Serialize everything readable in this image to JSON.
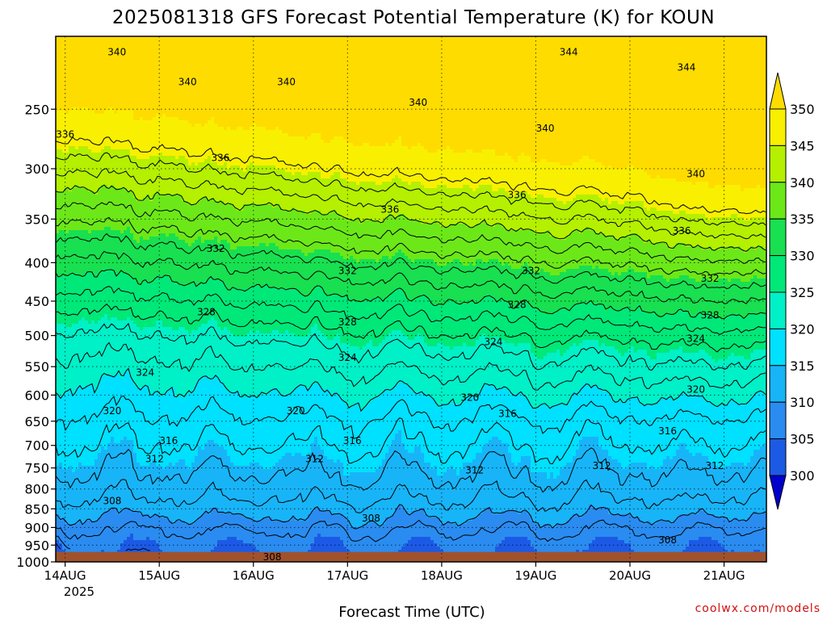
{
  "chart_data": {
    "type": "heatmap",
    "title": "2025081318 GFS Forecast Potential Temperature (K) for KOUN",
    "xlabel": "Forecast Time (UTC)",
    "ylabel": "",
    "x_tick_labels": [
      "14AUG",
      "15AUG",
      "16AUG",
      "17AUG",
      "18AUG",
      "19AUG",
      "20AUG",
      "21AUG"
    ],
    "x_year_label": "2025",
    "y_tick_labels": [
      "250",
      "300",
      "350",
      "400",
      "450",
      "500",
      "550",
      "600",
      "650",
      "700",
      "750",
      "800",
      "850",
      "900",
      "950",
      "1000"
    ],
    "y_tick_values": [
      250,
      300,
      350,
      400,
      450,
      500,
      550,
      600,
      650,
      700,
      750,
      800,
      850,
      900,
      950,
      1000
    ],
    "ylim": [
      1000,
      200
    ],
    "y_scale": "log",
    "x_range_days": [
      13.9,
      21.45
    ],
    "grid": true,
    "colorbar": {
      "levels": [
        300,
        305,
        310,
        315,
        320,
        325,
        330,
        335,
        340,
        345,
        350
      ],
      "labels": [
        "300",
        "305",
        "310",
        "315",
        "320",
        "325",
        "330",
        "335",
        "340",
        "345",
        "350"
      ],
      "colors": [
        "#0000cd",
        "#1c5ae6",
        "#2a8cf0",
        "#18b4f8",
        "#00e0ff",
        "#00f0c8",
        "#00e878",
        "#18e050",
        "#6ce818",
        "#b4f000",
        "#f8f000",
        "#ffdc00"
      ]
    },
    "contour_interval_K": 2,
    "contour_values": [
      300,
      302,
      304,
      306,
      308,
      310,
      312,
      314,
      316,
      318,
      320,
      322,
      324,
      326,
      328,
      330,
      332,
      334,
      336,
      338,
      340,
      342,
      344,
      346
    ],
    "contour_labels": [
      {
        "text": "340",
        "day": 14.55,
        "p": 210
      },
      {
        "text": "340",
        "day": 15.3,
        "p": 230
      },
      {
        "text": "340",
        "day": 16.35,
        "p": 230
      },
      {
        "text": "340",
        "day": 17.75,
        "p": 245
      },
      {
        "text": "340",
        "day": 19.1,
        "p": 265
      },
      {
        "text": "340",
        "day": 20.7,
        "p": 305
      },
      {
        "text": "344",
        "day": 19.35,
        "p": 210
      },
      {
        "text": "344",
        "day": 20.6,
        "p": 220
      },
      {
        "text": "336",
        "day": 14.0,
        "p": 270
      },
      {
        "text": "336",
        "day": 15.65,
        "p": 290
      },
      {
        "text": "336",
        "day": 17.45,
        "p": 340
      },
      {
        "text": "336",
        "day": 18.8,
        "p": 325
      },
      {
        "text": "336",
        "day": 20.55,
        "p": 363
      },
      {
        "text": "332",
        "day": 15.6,
        "p": 383
      },
      {
        "text": "332",
        "day": 17.0,
        "p": 410
      },
      {
        "text": "332",
        "day": 18.95,
        "p": 410
      },
      {
        "text": "332",
        "day": 20.85,
        "p": 420
      },
      {
        "text": "328",
        "day": 15.5,
        "p": 465
      },
      {
        "text": "328",
        "day": 17.0,
        "p": 480
      },
      {
        "text": "328",
        "day": 18.8,
        "p": 455
      },
      {
        "text": "328",
        "day": 20.85,
        "p": 470
      },
      {
        "text": "324",
        "day": 14.85,
        "p": 560
      },
      {
        "text": "324",
        "day": 17.0,
        "p": 535
      },
      {
        "text": "324",
        "day": 18.55,
        "p": 510
      },
      {
        "text": "324",
        "day": 20.7,
        "p": 505
      },
      {
        "text": "320",
        "day": 14.5,
        "p": 630
      },
      {
        "text": "320",
        "day": 16.45,
        "p": 630
      },
      {
        "text": "320",
        "day": 18.3,
        "p": 605
      },
      {
        "text": "320",
        "day": 20.7,
        "p": 590
      },
      {
        "text": "316",
        "day": 15.1,
        "p": 690
      },
      {
        "text": "316",
        "day": 17.05,
        "p": 690
      },
      {
        "text": "316",
        "day": 18.7,
        "p": 635
      },
      {
        "text": "316",
        "day": 20.4,
        "p": 670
      },
      {
        "text": "312",
        "day": 14.95,
        "p": 730
      },
      {
        "text": "312",
        "day": 16.65,
        "p": 730
      },
      {
        "text": "312",
        "day": 18.35,
        "p": 755
      },
      {
        "text": "312",
        "day": 19.7,
        "p": 745
      },
      {
        "text": "312",
        "day": 20.9,
        "p": 745
      },
      {
        "text": "308",
        "day": 14.5,
        "p": 830
      },
      {
        "text": "308",
        "day": 17.25,
        "p": 875
      },
      {
        "text": "308",
        "day": 16.2,
        "p": 985
      },
      {
        "text": "308",
        "day": 20.4,
        "p": 935
      }
    ],
    "ground_color": "#a0522d",
    "ground_level_p": 970
  },
  "credit": "coolwx.com/models"
}
